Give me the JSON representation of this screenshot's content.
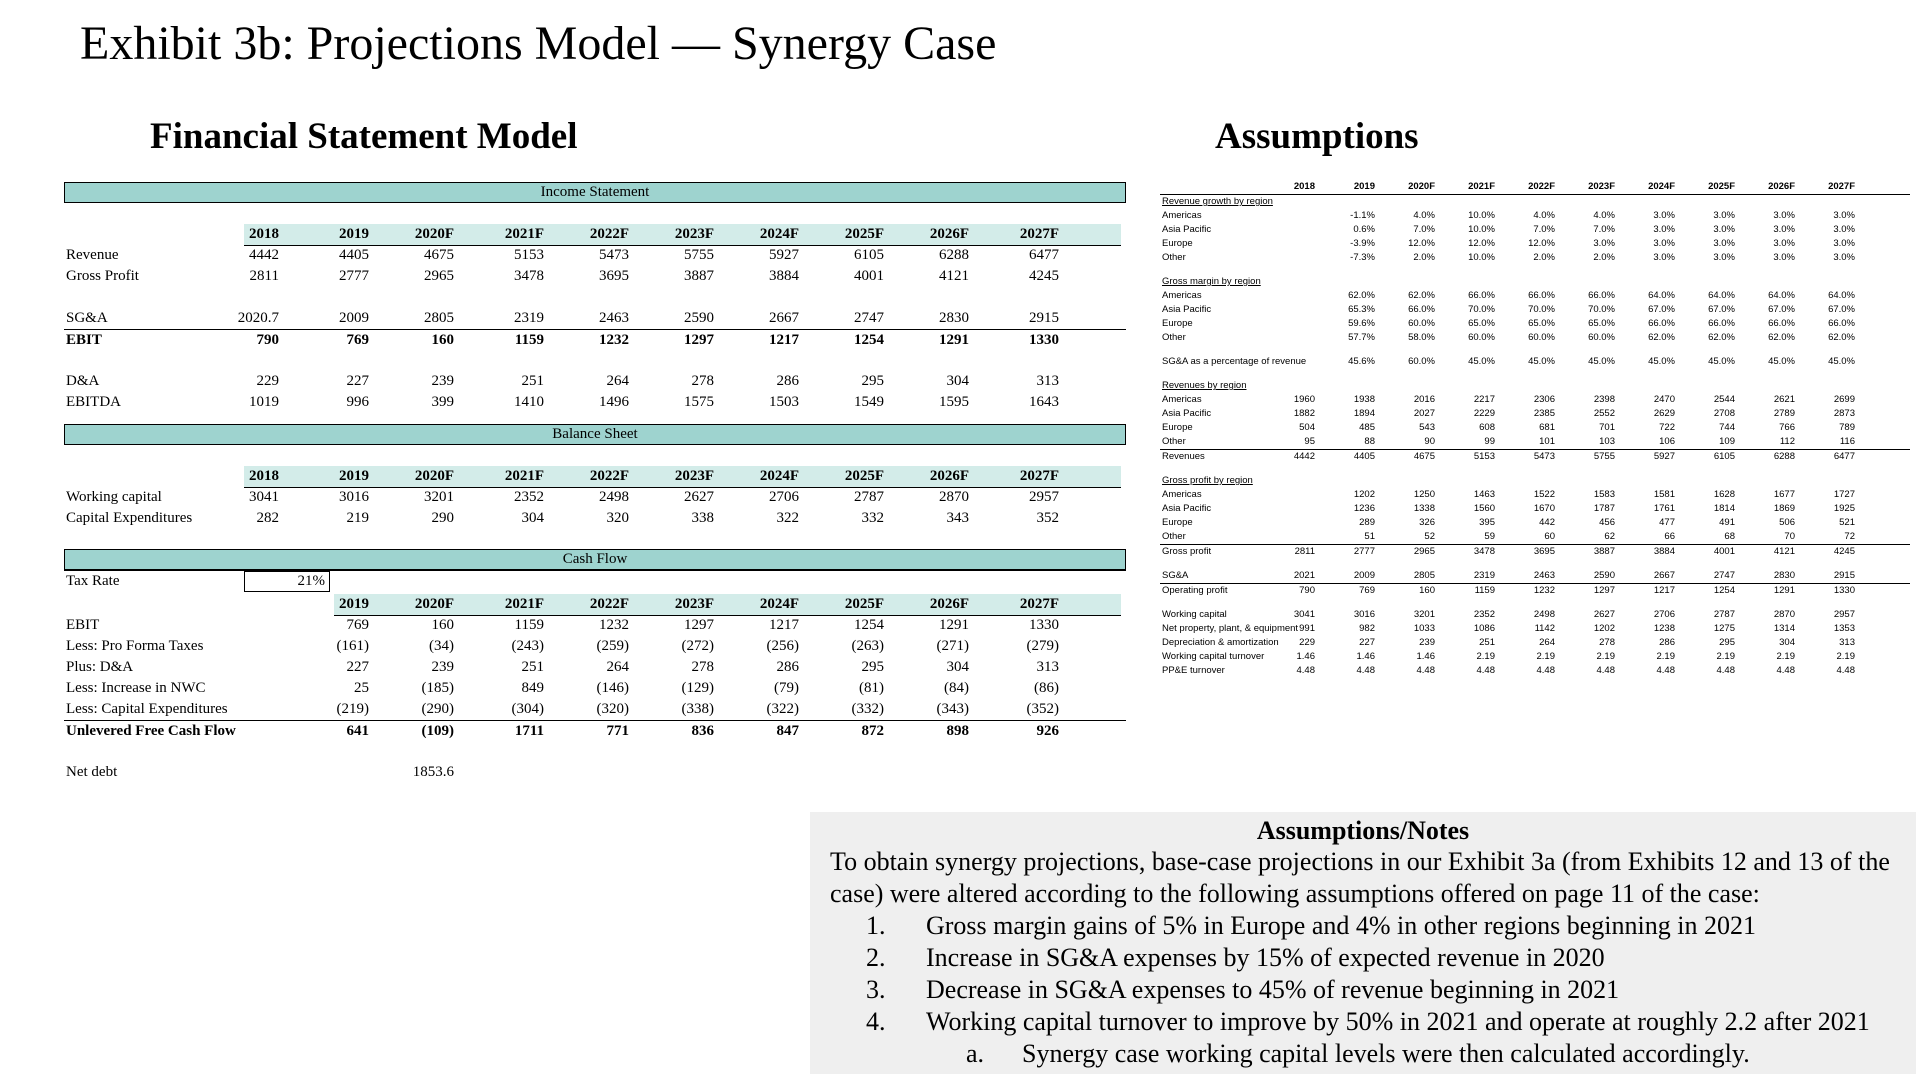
{
  "page": {
    "title": "Exhibit 3b: Projections Model — Synergy Case",
    "fsm_title": "Financial Statement Model",
    "assumptions_title": "Assumptions"
  },
  "fsm": {
    "income_statement": {
      "title": "Income Statement",
      "years": [
        "2018",
        "2019",
        "2020F",
        "2021F",
        "2022F",
        "2023F",
        "2024F",
        "2025F",
        "2026F",
        "2027F"
      ],
      "rows": [
        {
          "label": "Revenue",
          "values": [
            "4442",
            "4405",
            "4675",
            "5153",
            "5473",
            "5755",
            "5927",
            "6105",
            "6288",
            "6477"
          ]
        },
        {
          "label": "Gross Profit",
          "values": [
            "2811",
            "2777",
            "2965",
            "3478",
            "3695",
            "3887",
            "3884",
            "4001",
            "4121",
            "4245"
          ]
        },
        {
          "label": "SG&A",
          "values": [
            "2020.7",
            "2009",
            "2805",
            "2319",
            "2463",
            "2590",
            "2667",
            "2747",
            "2830",
            "2915"
          ]
        },
        {
          "label": "EBIT",
          "values": [
            "790",
            "769",
            "160",
            "1159",
            "1232",
            "1297",
            "1217",
            "1254",
            "1291",
            "1330"
          ]
        },
        {
          "label": "D&A",
          "values": [
            "229",
            "227",
            "239",
            "251",
            "264",
            "278",
            "286",
            "295",
            "304",
            "313"
          ]
        },
        {
          "label": "EBITDA",
          "values": [
            "1019",
            "996",
            "399",
            "1410",
            "1496",
            "1575",
            "1503",
            "1549",
            "1595",
            "1643"
          ]
        }
      ]
    },
    "balance_sheet": {
      "title": "Balance Sheet",
      "years": [
        "2018",
        "2019",
        "2020F",
        "2021F",
        "2022F",
        "2023F",
        "2024F",
        "2025F",
        "2026F",
        "2027F"
      ],
      "rows": [
        {
          "label": "Working capital",
          "values": [
            "3041",
            "3016",
            "3201",
            "2352",
            "2498",
            "2627",
            "2706",
            "2787",
            "2870",
            "2957"
          ]
        },
        {
          "label": "Capital Expenditures",
          "values": [
            "282",
            "219",
            "290",
            "304",
            "320",
            "338",
            "322",
            "332",
            "343",
            "352"
          ]
        }
      ]
    },
    "cash_flow": {
      "title": "Cash Flow",
      "tax_label": "Tax Rate",
      "tax_value": "21%",
      "years": [
        "2019",
        "2020F",
        "2021F",
        "2022F",
        "2023F",
        "2024F",
        "2025F",
        "2026F",
        "2027F"
      ],
      "rows": [
        {
          "label": "EBIT",
          "values": [
            "769",
            "160",
            "1159",
            "1232",
            "1297",
            "1217",
            "1254",
            "1291",
            "1330"
          ]
        },
        {
          "label": "Less: Pro Forma Taxes",
          "values": [
            "(161)",
            "(34)",
            "(243)",
            "(259)",
            "(272)",
            "(256)",
            "(263)",
            "(271)",
            "(279)"
          ]
        },
        {
          "label": "Plus: D&A",
          "values": [
            "227",
            "239",
            "251",
            "264",
            "278",
            "286",
            "295",
            "304",
            "313"
          ]
        },
        {
          "label": "Less: Increase in NWC",
          "values": [
            "25",
            "(185)",
            "849",
            "(146)",
            "(129)",
            "(79)",
            "(81)",
            "(84)",
            "(86)"
          ]
        },
        {
          "label": "Less: Capital Expenditures",
          "values": [
            "(219)",
            "(290)",
            "(304)",
            "(320)",
            "(338)",
            "(322)",
            "(332)",
            "(343)",
            "(352)"
          ]
        },
        {
          "label": "Unlevered Free Cash Flow",
          "values": [
            "641",
            "(109)",
            "1711",
            "771",
            "836",
            "847",
            "872",
            "898",
            "926"
          ]
        }
      ],
      "net_debt_label": "Net debt",
      "net_debt_value": "1853.6"
    }
  },
  "assumptions": {
    "years": [
      "2018",
      "2019",
      "2020F",
      "2021F",
      "2022F",
      "2023F",
      "2024F",
      "2025F",
      "2026F",
      "2027F"
    ],
    "revenue_growth": {
      "title": "Revenue growth by region",
      "rows": [
        {
          "label": "Americas",
          "values": [
            "",
            "-1.1%",
            "4.0%",
            "10.0%",
            "4.0%",
            "4.0%",
            "3.0%",
            "3.0%",
            "3.0%",
            "3.0%"
          ]
        },
        {
          "label": "Asia Pacific",
          "values": [
            "",
            "0.6%",
            "7.0%",
            "10.0%",
            "7.0%",
            "7.0%",
            "3.0%",
            "3.0%",
            "3.0%",
            "3.0%"
          ]
        },
        {
          "label": "Europe",
          "values": [
            "",
            "-3.9%",
            "12.0%",
            "12.0%",
            "12.0%",
            "3.0%",
            "3.0%",
            "3.0%",
            "3.0%",
            "3.0%"
          ]
        },
        {
          "label": "Other",
          "values": [
            "",
            "-7.3%",
            "2.0%",
            "10.0%",
            "2.0%",
            "2.0%",
            "3.0%",
            "3.0%",
            "3.0%",
            "3.0%"
          ]
        }
      ]
    },
    "gross_margin": {
      "title": "Gross margin by region",
      "rows": [
        {
          "label": "Americas",
          "values": [
            "",
            "62.0%",
            "62.0%",
            "66.0%",
            "66.0%",
            "66.0%",
            "64.0%",
            "64.0%",
            "64.0%",
            "64.0%"
          ]
        },
        {
          "label": "Asia Pacific",
          "values": [
            "",
            "65.3%",
            "66.0%",
            "70.0%",
            "70.0%",
            "70.0%",
            "67.0%",
            "67.0%",
            "67.0%",
            "67.0%"
          ]
        },
        {
          "label": "Europe",
          "values": [
            "",
            "59.6%",
            "60.0%",
            "65.0%",
            "65.0%",
            "65.0%",
            "66.0%",
            "66.0%",
            "66.0%",
            "66.0%"
          ]
        },
        {
          "label": "Other",
          "values": [
            "",
            "57.7%",
            "58.0%",
            "60.0%",
            "60.0%",
            "60.0%",
            "62.0%",
            "62.0%",
            "62.0%",
            "62.0%"
          ]
        }
      ]
    },
    "sga_pct": {
      "label": "SG&A as a percentage of revenue",
      "values": [
        "",
        "45.6%",
        "60.0%",
        "45.0%",
        "45.0%",
        "45.0%",
        "45.0%",
        "45.0%",
        "45.0%",
        "45.0%"
      ]
    },
    "revenues_by_region": {
      "title": "Revenues by region",
      "rows": [
        {
          "label": "Americas",
          "values": [
            "1960",
            "1938",
            "2016",
            "2217",
            "2306",
            "2398",
            "2470",
            "2544",
            "2621",
            "2699"
          ]
        },
        {
          "label": "Asia Pacific",
          "values": [
            "1882",
            "1894",
            "2027",
            "2229",
            "2385",
            "2552",
            "2629",
            "2708",
            "2789",
            "2873"
          ]
        },
        {
          "label": "Europe",
          "values": [
            "504",
            "485",
            "543",
            "608",
            "681",
            "701",
            "722",
            "744",
            "766",
            "789"
          ]
        },
        {
          "label": "Other",
          "values": [
            "95",
            "88",
            "90",
            "99",
            "101",
            "103",
            "106",
            "109",
            "112",
            "116"
          ]
        }
      ],
      "total": {
        "label": "Revenues",
        "values": [
          "4442",
          "4405",
          "4675",
          "5153",
          "5473",
          "5755",
          "5927",
          "6105",
          "6288",
          "6477"
        ]
      }
    },
    "gross_profit_by_region": {
      "title": "Gross profit by region",
      "rows": [
        {
          "label": "Americas",
          "values": [
            "",
            "1202",
            "1250",
            "1463",
            "1522",
            "1583",
            "1581",
            "1628",
            "1677",
            "1727"
          ]
        },
        {
          "label": "Asia Pacific",
          "values": [
            "",
            "1236",
            "1338",
            "1560",
            "1670",
            "1787",
            "1761",
            "1814",
            "1869",
            "1925"
          ]
        },
        {
          "label": "Europe",
          "values": [
            "",
            "289",
            "326",
            "395",
            "442",
            "456",
            "477",
            "491",
            "506",
            "521"
          ]
        },
        {
          "label": "Other",
          "values": [
            "",
            "51",
            "52",
            "59",
            "60",
            "62",
            "66",
            "68",
            "70",
            "72"
          ]
        }
      ],
      "total": {
        "label": "Gross profit",
        "values": [
          "2811",
          "2777",
          "2965",
          "3478",
          "3695",
          "3887",
          "3884",
          "4001",
          "4121",
          "4245"
        ]
      }
    },
    "sga_rows": [
      {
        "label": "SG&A",
        "values": [
          "2021",
          "2009",
          "2805",
          "2319",
          "2463",
          "2590",
          "2667",
          "2747",
          "2830",
          "2915"
        ]
      },
      {
        "label": "Operating profit",
        "values": [
          "790",
          "769",
          "160",
          "1159",
          "1232",
          "1297",
          "1217",
          "1254",
          "1291",
          "1330"
        ]
      }
    ],
    "wc_rows": [
      {
        "label": "Working capital",
        "values": [
          "3041",
          "3016",
          "3201",
          "2352",
          "2498",
          "2627",
          "2706",
          "2787",
          "2870",
          "2957"
        ]
      },
      {
        "label": "Net property, plant, & equipment",
        "values": [
          "991",
          "982",
          "1033",
          "1086",
          "1142",
          "1202",
          "1238",
          "1275",
          "1314",
          "1353"
        ]
      },
      {
        "label": "Depreciation & amortization",
        "values": [
          "229",
          "227",
          "239",
          "251",
          "264",
          "278",
          "286",
          "295",
          "304",
          "313"
        ]
      },
      {
        "label": "Working capital turnover",
        "values": [
          "1.46",
          "1.46",
          "1.46",
          "2.19",
          "2.19",
          "2.19",
          "2.19",
          "2.19",
          "2.19",
          "2.19"
        ]
      },
      {
        "label": "PP&E turnover",
        "values": [
          "4.48",
          "4.48",
          "4.48",
          "4.48",
          "4.48",
          "4.48",
          "4.48",
          "4.48",
          "4.48",
          "4.48"
        ]
      }
    ]
  },
  "notes": {
    "title": "Assumptions/Notes",
    "intro": "To obtain synergy projections, base-case projections in our Exhibit 3a (from Exhibits 12 and 13 of the case) were altered according to the following assumptions offered on page 11 of the case:",
    "items": [
      {
        "num": "1.",
        "text": "Gross margin gains of 5% in Europe and 4% in other regions beginning in 2021"
      },
      {
        "num": "2.",
        "text": "Increase in SG&A expenses by 15% of expected revenue in 2020"
      },
      {
        "num": "3.",
        "text": "Decrease in SG&A expenses to 45% of revenue beginning in 2021"
      },
      {
        "num": "4.",
        "text": "Working capital turnover to improve by 50% in 2021 and operate at roughly 2.2 after 2021"
      }
    ],
    "sub": {
      "num": "a.",
      "text": "Synergy case working capital levels were then calculated accordingly."
    }
  }
}
